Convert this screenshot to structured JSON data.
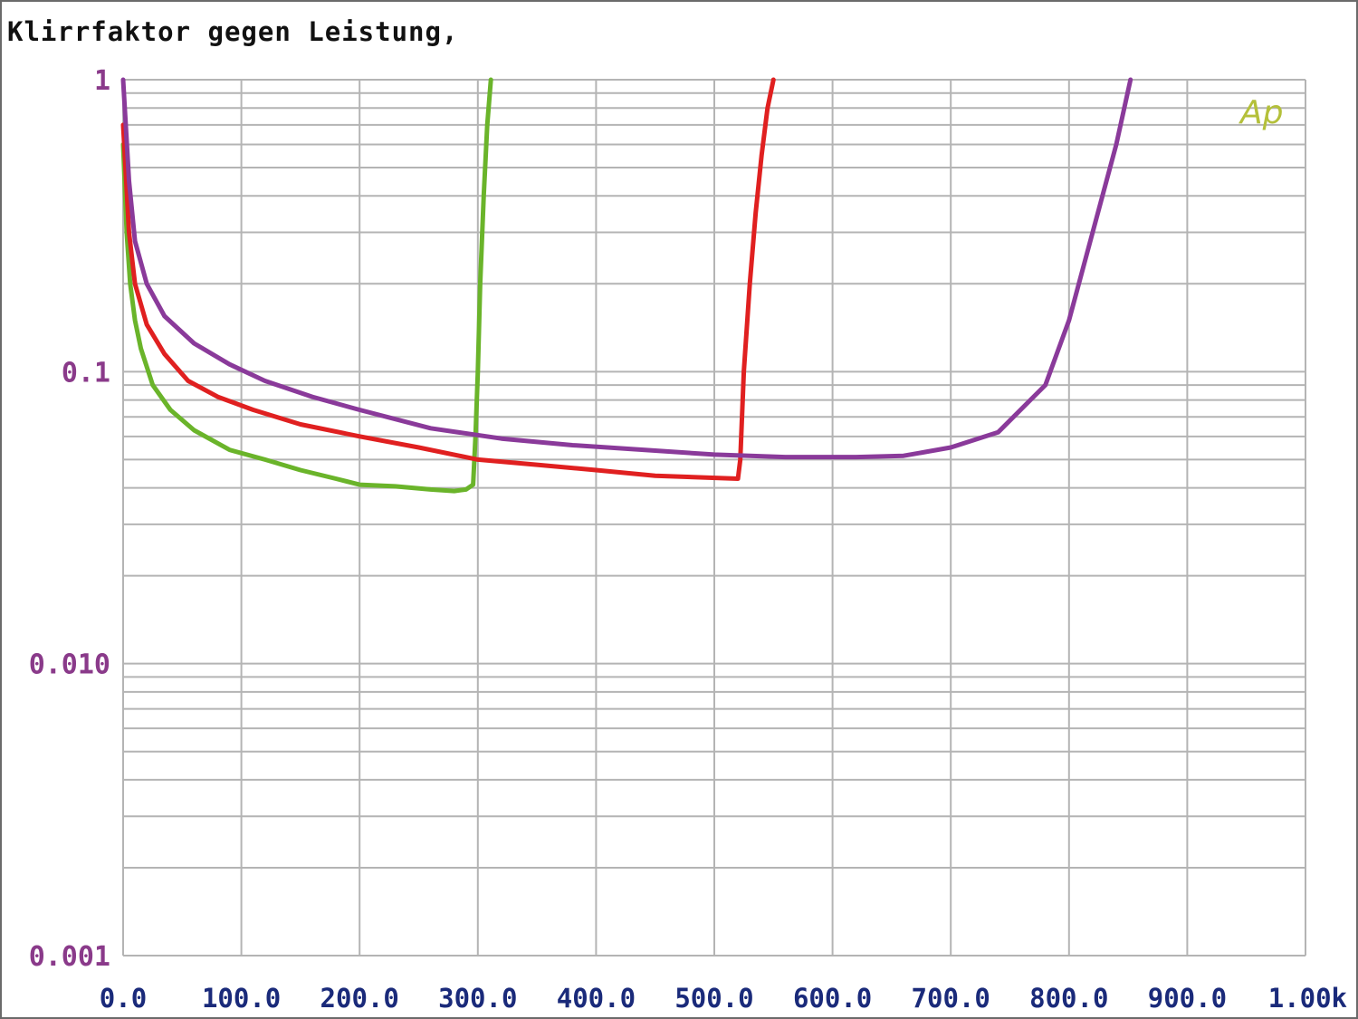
{
  "title": "Klirrfaktor gegen Leistung,",
  "logo": "Ap",
  "colors": {
    "grid": "#b4b4b4",
    "ytick": "#8a3a8a",
    "xtick": "#1a2a7a",
    "logo": "#b4c03a"
  },
  "chart_data": {
    "type": "line",
    "title": "Klirrfaktor gegen Leistung,",
    "xlabel": "",
    "ylabel": "",
    "x_scale": "linear",
    "y_scale": "log",
    "xlim": [
      0,
      1000
    ],
    "ylim": [
      0.001,
      1
    ],
    "grid": true,
    "x_ticks": [
      {
        "value": 0,
        "label": "0.0"
      },
      {
        "value": 100,
        "label": "100.0"
      },
      {
        "value": 200,
        "label": "200.0"
      },
      {
        "value": 300,
        "label": "300.0"
      },
      {
        "value": 400,
        "label": "400.0"
      },
      {
        "value": 500,
        "label": "500.0"
      },
      {
        "value": 600,
        "label": "600.0"
      },
      {
        "value": 700,
        "label": "700.0"
      },
      {
        "value": 800,
        "label": "800.0"
      },
      {
        "value": 900,
        "label": "900.0"
      },
      {
        "value": 1000,
        "label": "1.00k"
      }
    ],
    "y_ticks": [
      {
        "value": 1,
        "label": "1"
      },
      {
        "value": 0.1,
        "label": "0.1"
      },
      {
        "value": 0.01,
        "label": "0.010"
      },
      {
        "value": 0.001,
        "label": "0.001"
      }
    ],
    "series": [
      {
        "color": "#6ab42a",
        "x": [
          0,
          3,
          6,
          10,
          15,
          25,
          40,
          60,
          90,
          120,
          150,
          180,
          200,
          230,
          260,
          280,
          290,
          296,
          298,
          300,
          302,
          305,
          308,
          311
        ],
        "y": [
          0.6,
          0.3,
          0.2,
          0.15,
          0.12,
          0.09,
          0.074,
          0.063,
          0.054,
          0.05,
          0.046,
          0.043,
          0.041,
          0.0405,
          0.0395,
          0.039,
          0.0395,
          0.041,
          0.06,
          0.1,
          0.2,
          0.4,
          0.7,
          1.0
        ]
      },
      {
        "color": "#e02020",
        "x": [
          0,
          5,
          10,
          20,
          35,
          55,
          80,
          110,
          150,
          200,
          250,
          300,
          350,
          400,
          450,
          520,
          522,
          525,
          530,
          535,
          540,
          545,
          550
        ],
        "y": [
          0.7,
          0.3,
          0.2,
          0.145,
          0.115,
          0.093,
          0.082,
          0.074,
          0.066,
          0.06,
          0.055,
          0.05,
          0.048,
          0.046,
          0.044,
          0.043,
          0.05,
          0.1,
          0.2,
          0.35,
          0.55,
          0.8,
          1.0
        ]
      },
      {
        "color": "#8a3a9a",
        "x": [
          0,
          5,
          10,
          20,
          35,
          60,
          90,
          120,
          160,
          200,
          260,
          320,
          380,
          440,
          500,
          560,
          620,
          660,
          700,
          740,
          780,
          800,
          820,
          840,
          852
        ],
        "y": [
          1.0,
          0.45,
          0.28,
          0.2,
          0.155,
          0.125,
          0.106,
          0.093,
          0.082,
          0.074,
          0.064,
          0.059,
          0.056,
          0.054,
          0.052,
          0.051,
          0.051,
          0.0515,
          0.055,
          0.062,
          0.09,
          0.15,
          0.3,
          0.6,
          1.0
        ]
      }
    ]
  }
}
